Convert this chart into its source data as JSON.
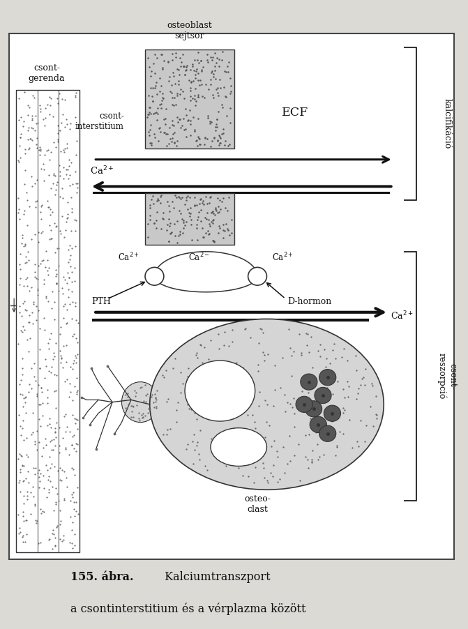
{
  "bg_color": "#dcdad5",
  "white_box_color": "#ffffff",
  "stipple_color": "#888888",
  "stipple_box_color": "#cccccc",
  "title_bold": "155. ábra.",
  "title_normal": " Kalciumtranszport",
  "subtitle": "a csontinterstitium és a vérplazma között",
  "label_csont_gerenda": "csont-\ngerenda",
  "label_osteoblast": "osteoblast\nsejtsor",
  "label_csont_interstitium": "csont-\ninterstitium",
  "label_ecf": "ECF",
  "label_kalcifikacio": "kalcifikáció",
  "label_pth": "PTH",
  "label_dhormon": "D-hormon",
  "label_csont_reszorpcio": "csont-\nreszorpció",
  "label_osteoclast": "osteo-\nclast",
  "arrow_color": "#111111",
  "text_color": "#111111"
}
